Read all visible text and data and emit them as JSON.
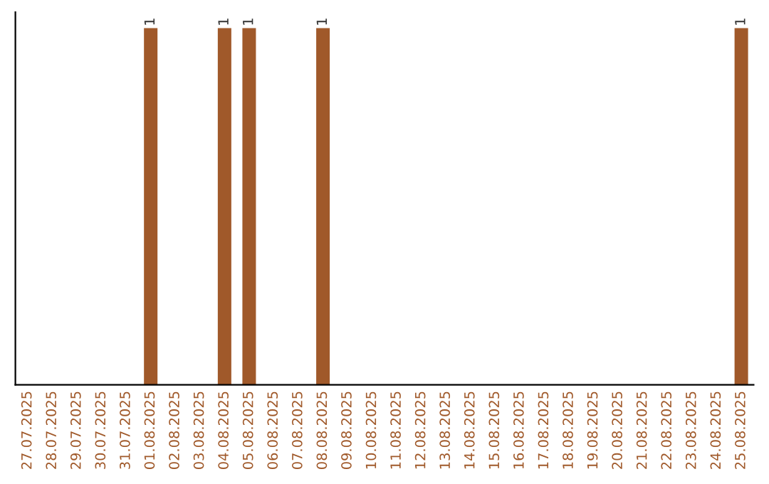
{
  "chart_data": {
    "type": "bar",
    "categories": [
      "27.07.2025",
      "28.07.2025",
      "29.07.2025",
      "30.07.2025",
      "31.07.2025",
      "01.08.2025",
      "02.08.2025",
      "03.08.2025",
      "04.08.2025",
      "05.08.2025",
      "06.08.2025",
      "07.08.2025",
      "08.08.2025",
      "09.08.2025",
      "10.08.2025",
      "11.08.2025",
      "12.08.2025",
      "13.08.2025",
      "14.08.2025",
      "15.08.2025",
      "16.08.2025",
      "17.08.2025",
      "18.08.2025",
      "19.08.2025",
      "20.08.2025",
      "21.08.2025",
      "22.08.2025",
      "23.08.2025",
      "24.08.2025",
      "25.08.2025"
    ],
    "values": [
      0,
      0,
      0,
      0,
      0,
      1,
      0,
      0,
      1,
      1,
      0,
      0,
      1,
      0,
      0,
      0,
      0,
      0,
      0,
      0,
      0,
      0,
      0,
      0,
      0,
      0,
      0,
      0,
      0,
      1
    ],
    "value_labels": [
      null,
      null,
      null,
      null,
      null,
      "1",
      null,
      null,
      "1",
      "1",
      null,
      null,
      "1",
      null,
      null,
      null,
      null,
      null,
      null,
      null,
      null,
      null,
      null,
      null,
      null,
      null,
      null,
      null,
      null,
      "1"
    ],
    "color": "#a0592a",
    "tick_labels": "x",
    "grid": false,
    "legend": false
  }
}
